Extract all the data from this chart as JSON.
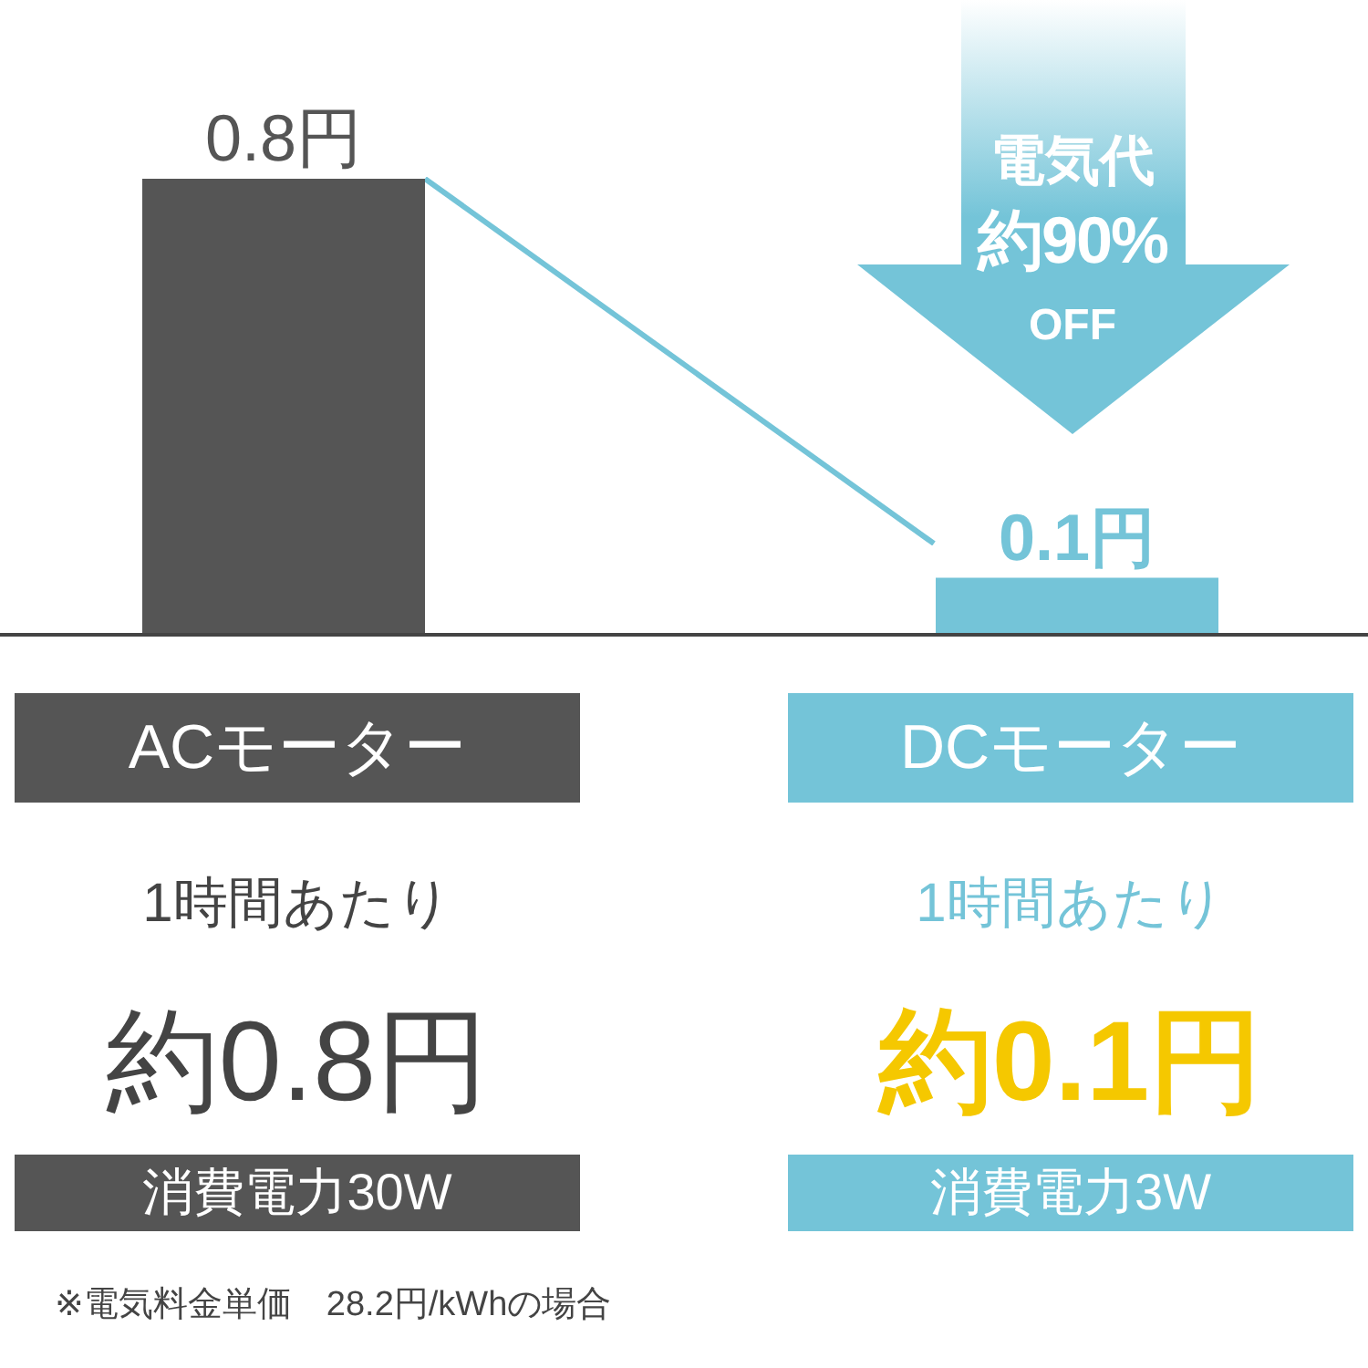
{
  "chart_data": {
    "type": "bar",
    "categories": [
      "ACモーター",
      "DCモーター"
    ],
    "values": [
      0.8,
      0.1
    ],
    "colors": [
      "#555555",
      "#74c4d8"
    ],
    "value_labels": [
      "0.8円",
      "0.1円"
    ],
    "grid": false,
    "legend": false,
    "annotations": [
      "電気代",
      "約90%",
      "OFF",
      "1時間あたり",
      "約0.8円",
      "1時間あたり",
      "約0.1円",
      "消費電力30W",
      "消費電力3W",
      "※電気料金単価　28.2円/kWhの場合"
    ]
  }
}
